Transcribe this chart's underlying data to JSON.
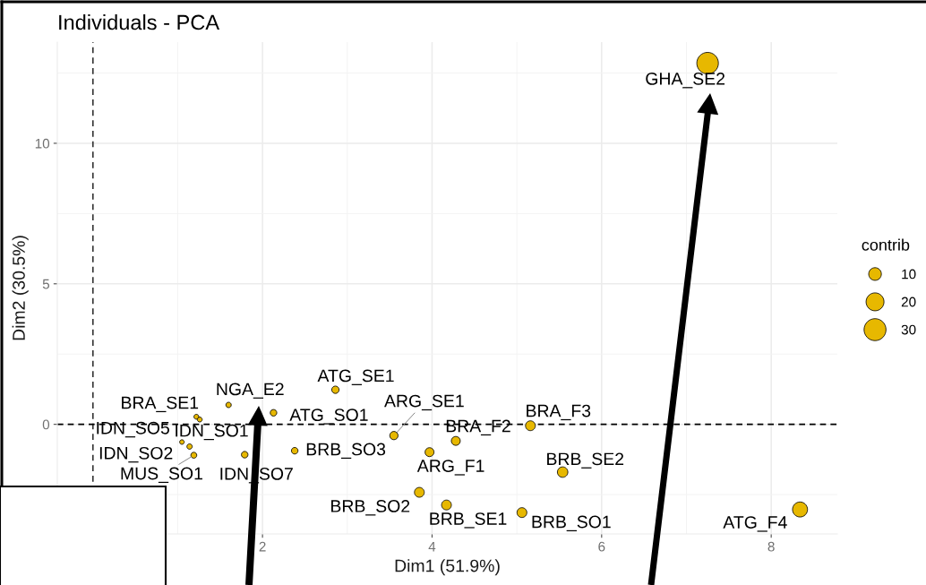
{
  "chart_data": {
    "type": "bubble",
    "title": "Individuals - PCA",
    "xlabel": "Dim1 (51.9%)",
    "ylabel": "Dim2 (30.5%)",
    "legend_title": "contrib",
    "x": [
      7.25,
      8.34,
      1.22,
      1.26,
      1.05,
      1.14,
      1.19,
      1.6,
      2.13,
      1.79,
      2.38,
      2.86,
      3.55,
      3.97,
      4.28,
      5.16,
      5.54,
      3.85,
      4.17,
      5.06
    ],
    "values": [
      12.85,
      -3.03,
      0.27,
      0.17,
      -0.63,
      -0.79,
      -1.1,
      0.69,
      0.41,
      -1.08,
      -0.94,
      1.23,
      -0.4,
      -0.99,
      -0.59,
      -0.05,
      -1.7,
      -2.42,
      -2.87,
      -3.14
    ],
    "sizes": [
      29,
      14,
      1.5,
      1.5,
      1.3,
      1.8,
      2.2,
      1.8,
      2.7,
      2.7,
      2.7,
      3.4,
      4.3,
      5,
      5,
      6,
      6.8,
      6,
      6,
      6
    ],
    "size_legend": [
      10,
      20,
      30
    ],
    "color": "#e7b800",
    "marker": "circle",
    "xlim": [
      -0.42,
      8.78
    ],
    "ylim": [
      -3.9,
      13.6
    ],
    "xticks": [
      2,
      4,
      6,
      8
    ],
    "yticks": [
      0,
      5,
      10
    ],
    "grid": true,
    "ref_lines": [
      {
        "axis": "x",
        "value": 0,
        "color": "#333333",
        "line_style": "dashed"
      },
      {
        "axis": "y",
        "value": 0,
        "color": "#000000",
        "line_style": "dashed"
      }
    ],
    "annotations": [
      {
        "text": "GHA_SE2",
        "x": 7.25,
        "y": 12.85
      },
      {
        "text": "ATG_F4",
        "x": 8.34,
        "y": -3.03
      },
      {
        "text": "BRA_SE1",
        "x": 1.22,
        "y": 0.27
      },
      {
        "text": "IDN_SO1",
        "x": 1.26,
        "y": 0.17
      },
      {
        "text": "IDN_SO5",
        "x": 1.05,
        "y": -0.63
      },
      {
        "text": "IDN_SO2",
        "x": 1.14,
        "y": -0.79
      },
      {
        "text": "MUS_SO1",
        "x": 1.19,
        "y": -1.1
      },
      {
        "text": "NGA_E2",
        "x": 1.6,
        "y": 0.69
      },
      {
        "text": "ATG_SO1",
        "x": 2.13,
        "y": 0.41
      },
      {
        "text": "IDN_SO7",
        "x": 1.79,
        "y": -1.08
      },
      {
        "text": "BRB_SO3",
        "x": 2.38,
        "y": -0.94
      },
      {
        "text": "ATG_SE1",
        "x": 2.86,
        "y": 1.23
      },
      {
        "text": "ARG_SE1",
        "x": 3.55,
        "y": -0.4
      },
      {
        "text": "ARG_F1",
        "x": 3.97,
        "y": -0.99
      },
      {
        "text": "BRA_F2",
        "x": 4.28,
        "y": -0.59
      },
      {
        "text": "BRA_F3",
        "x": 5.16,
        "y": -0.05
      },
      {
        "text": "BRB_SE2",
        "x": 5.54,
        "y": -1.7
      },
      {
        "text": "BRB_SO2",
        "x": 3.85,
        "y": -2.42
      },
      {
        "text": "BRB_SE1",
        "x": 4.17,
        "y": -2.87
      },
      {
        "text": "BRB_SO1",
        "x": 5.06,
        "y": -3.14
      }
    ]
  }
}
